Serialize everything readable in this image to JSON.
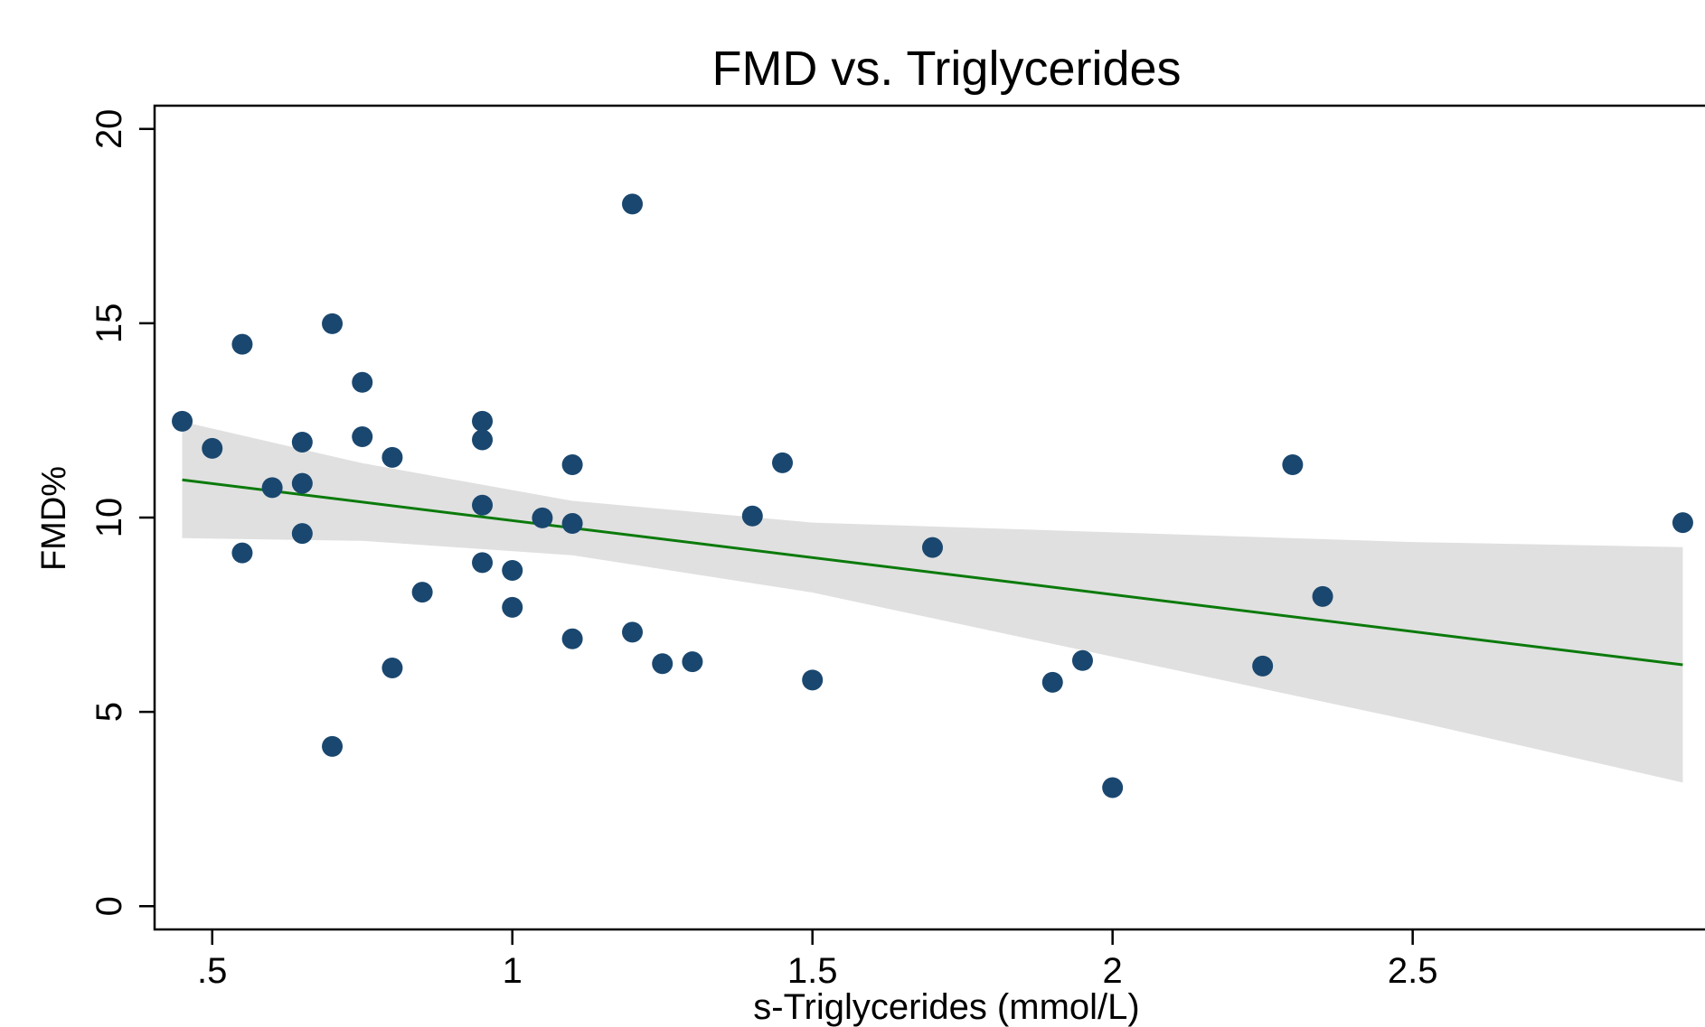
{
  "chart_data": {
    "type": "scatter",
    "title": "FMD vs. Triglycerides",
    "x_label": "s-Triglycerides (mmol/L)",
    "y_label": "FMD%",
    "xlim": [
      0.404,
      2.987
    ],
    "ylim": [
      -0.6,
      20.6
    ],
    "xticks": [
      {
        "value": 0.5,
        "label": ".5"
      },
      1,
      1.5,
      2,
      2.5
    ],
    "yticks": [
      0,
      5,
      10,
      15,
      20
    ],
    "series": [
      {
        "color": "#1a476f",
        "x": [
          0.45,
          0.5,
          0.55,
          0.55,
          0.6,
          0.65,
          0.65,
          0.65,
          0.7,
          0.7,
          0.75,
          0.75,
          0.8,
          0.8,
          0.85,
          0.95,
          0.95,
          0.95,
          0.95,
          1.0,
          1.0,
          1.05,
          1.1,
          1.1,
          1.1,
          1.2,
          1.2,
          1.25,
          1.3,
          1.4,
          1.45,
          1.5,
          1.7,
          1.9,
          1.95,
          2.0,
          2.25,
          2.3,
          2.35,
          2.95
        ],
        "values": [
          12.48,
          11.78,
          14.46,
          9.09,
          10.77,
          11.94,
          10.88,
          9.59,
          14.99,
          4.11,
          13.48,
          12.08,
          11.55,
          6.13,
          8.08,
          12.48,
          12.0,
          10.32,
          8.84,
          8.64,
          7.69,
          9.99,
          11.36,
          9.85,
          6.88,
          18.07,
          7.05,
          6.24,
          6.29,
          10.04,
          11.41,
          5.82,
          9.23,
          5.76,
          6.32,
          3.05,
          6.18,
          11.36,
          7.97,
          9.87
        ]
      }
    ],
    "fit": {
      "color": "#0b7a0b",
      "x": [
        0.45,
        2.95
      ],
      "values": [
        10.97,
        6.21
      ]
    },
    "ci": {
      "color": "#e0e0e0",
      "x": [
        0.45,
        0.75,
        1.1,
        1.5,
        2.0,
        2.5,
        2.95
      ],
      "upper": [
        12.47,
        11.4,
        10.43,
        9.87,
        9.62,
        9.37,
        9.24
      ],
      "lower": [
        9.47,
        9.4,
        9.03,
        8.07,
        6.42,
        4.77,
        3.18
      ]
    }
  }
}
